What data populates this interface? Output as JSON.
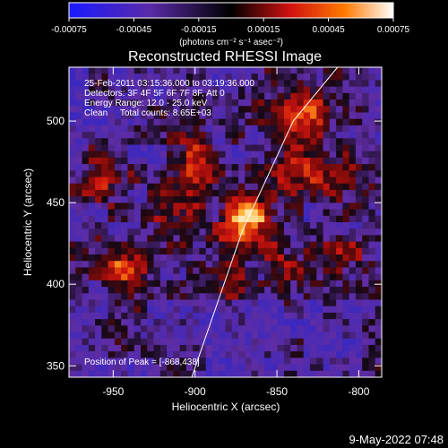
{
  "chart_data": {
    "type": "heatmap",
    "title": "Reconstructed RHESSI Image",
    "xlabel": "Heliocentric X (arcsec)",
    "ylabel": "Heliocentric Y (arcsec)",
    "xlim": [
      -977,
      -786
    ],
    "ylim": [
      343,
      533
    ],
    "x_ticks": [
      -950,
      -900,
      -850,
      -800
    ],
    "x_tick_labels": [
      "-950",
      "-900",
      "-850",
      "-800"
    ],
    "y_ticks": [
      350,
      400,
      450,
      500
    ],
    "y_tick_labels": [
      "350",
      "400",
      "450",
      "500"
    ],
    "colorbar": {
      "ticks": [
        -0.00075,
        -0.00045,
        -0.00015,
        0.00015,
        0.00045,
        0.00075
      ],
      "tick_labels": [
        "-0.00075",
        "-0.00045",
        "-0.00015",
        "0.00015",
        "0.00045",
        "0.00075"
      ],
      "unit_label": "(photons cm⁻² s⁻¹ asec⁻²)",
      "colors": [
        "#1a1aff",
        "#5a2aa8",
        "#000000",
        "#d01010",
        "#ff7a00",
        "#ffffff"
      ]
    },
    "annotations": [
      "25-Feb-2011 03:15:36.000 to 03:19:36.000",
      "Detectors: 3F 4F 5F 6F 7F 8F, Att 0",
      "Energy Range: 12.0 - 25.0 keV",
      "Clean     Total counts: 8.65E+03"
    ],
    "peak_label": "Position of Peak = [-868,438]",
    "peak": {
      "x": -868,
      "y": 438
    },
    "limb_line": [
      [
        -902,
        343
      ],
      [
        -871,
        433
      ],
      [
        -840,
        500
      ],
      [
        -813,
        533
      ]
    ],
    "hot_spots": [
      {
        "x": -868,
        "y": 438,
        "level": 1.0
      },
      {
        "x": -955,
        "y": 465,
        "level": 0.55
      },
      {
        "x": -945,
        "y": 410,
        "level": 0.55
      },
      {
        "x": -906,
        "y": 456,
        "level": 0.5
      },
      {
        "x": -827,
        "y": 505,
        "level": 0.5
      },
      {
        "x": -838,
        "y": 470,
        "level": 0.45
      },
      {
        "x": -810,
        "y": 470,
        "level": 0.45
      },
      {
        "x": -850,
        "y": 505,
        "level": 0.4
      },
      {
        "x": -900,
        "y": 480,
        "level": 0.4
      },
      {
        "x": -918,
        "y": 430,
        "level": 0.35
      },
      {
        "x": -845,
        "y": 410,
        "level": 0.35
      },
      {
        "x": -880,
        "y": 405,
        "level": 0.3
      },
      {
        "x": -810,
        "y": 420,
        "level": 0.3
      }
    ]
  },
  "footer": {
    "timestamp": "9-May-2022 07:48"
  }
}
